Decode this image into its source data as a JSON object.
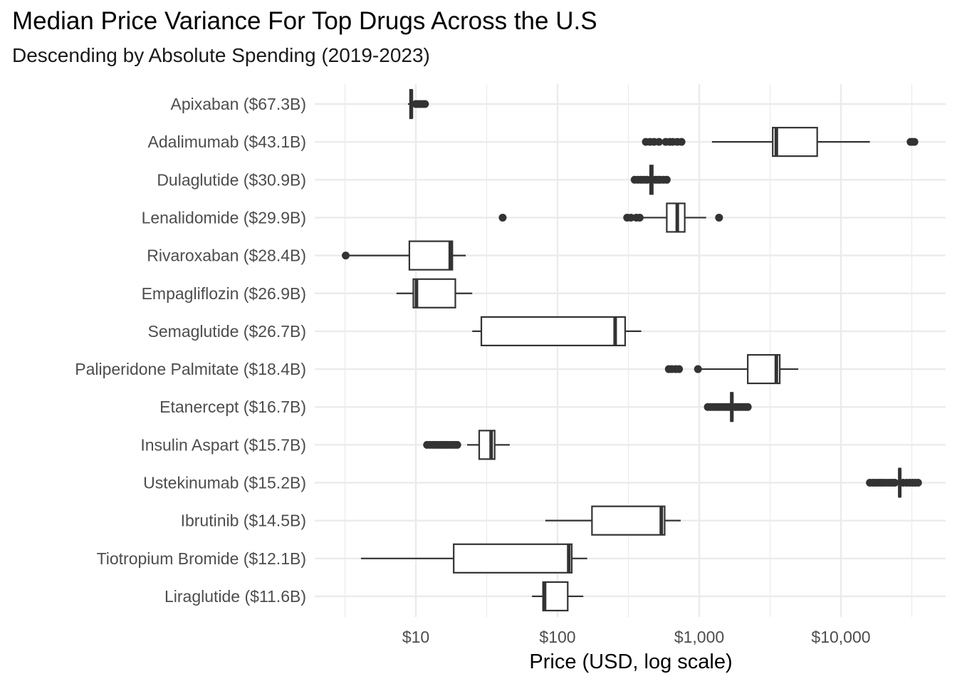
{
  "chart_data": {
    "type": "boxplot",
    "title": "Median Price Variance For Top Drugs Across the U.S",
    "subtitle": "Descending by Absolute Spending (2019-2023)",
    "xlabel": "Price (USD, log scale)",
    "ylabel": "",
    "x_scale": "log10",
    "xlim": [
      2.2,
      38000
    ],
    "x_ticks": [
      10,
      100,
      1000,
      10000
    ],
    "x_tick_labels": [
      "$10",
      "$100",
      "$1,000",
      "$10,000"
    ],
    "grid": true,
    "legend": "none",
    "box_color": "#333333",
    "grid_color": "#ebebeb",
    "series": [
      {
        "label": "Apixaban ($67.3B)",
        "whisker_low": 8.8,
        "q1": 9.1,
        "median": 9.3,
        "q3": 9.4,
        "whisker_high": 9.7,
        "outliers": [
          10.0,
          10.4,
          10.8,
          11.2,
          11.6
        ]
      },
      {
        "label": "Adalimumab ($43.1B)",
        "whisker_low": 1230,
        "q1": 3300,
        "median": 3500,
        "q3": 6800,
        "whisker_high": 16000,
        "outliers": [
          420,
          450,
          480,
          520,
          580,
          620,
          650,
          700,
          750,
          31000,
          32000,
          33000
        ]
      },
      {
        "label": "Dulaglutide ($30.9B)",
        "whisker_low": 440,
        "q1": 450,
        "median": 460,
        "q3": 470,
        "whisker_high": 480,
        "outliers": [
          350,
          370,
          390,
          410,
          430,
          490,
          510,
          530,
          560,
          590
        ]
      },
      {
        "label": "Lenalidomide ($29.9B)",
        "whisker_low": 400,
        "q1": 590,
        "median": 700,
        "q3": 790,
        "whisker_high": 1120,
        "outliers": [
          41,
          310,
          330,
          360,
          380,
          1380
        ]
      },
      {
        "label": "Rivaroxaban ($28.4B)",
        "whisker_low": 3.2,
        "q1": 9.0,
        "median": 17.5,
        "q3": 18.1,
        "whisker_high": 22.5,
        "outliers": [
          3.2
        ]
      },
      {
        "label": "Empagliflozin ($26.9B)",
        "whisker_low": 7.3,
        "q1": 9.6,
        "median": 10.1,
        "q3": 19.0,
        "whisker_high": 25.0,
        "outliers": []
      },
      {
        "label": "Semaglutide ($26.7B)",
        "whisker_low": 25.0,
        "q1": 29.0,
        "median": 255,
        "q3": 300,
        "whisker_high": 390,
        "outliers": []
      },
      {
        "label": "Paliperidone Palmitate ($18.4B)",
        "whisker_low": 1000,
        "q1": 2200,
        "median": 3500,
        "q3": 3700,
        "whisker_high": 5000,
        "outliers": [
          610,
          640,
          680,
          720,
          980
        ]
      },
      {
        "label": "Etanercept ($16.7B)",
        "whisker_low": 1650,
        "q1": 1670,
        "median": 1700,
        "q3": 1720,
        "whisker_high": 1750,
        "outliers": [
          1150,
          1200,
          1260,
          1320,
          1380,
          1440,
          1500,
          1560,
          1620,
          1800,
          1870,
          1950,
          2030,
          2120,
          2200
        ]
      },
      {
        "label": "Insulin Aspart ($15.7B)",
        "whisker_low": 23.0,
        "q1": 28.0,
        "median": 34.0,
        "q3": 36.0,
        "whisker_high": 46.0,
        "outliers": [
          12.0,
          12.6,
          13.2,
          13.8,
          14.4,
          15.0,
          15.6,
          16.2,
          16.8,
          17.5,
          18.2,
          18.9,
          19.6
        ]
      },
      {
        "label": "Ustekinumab ($15.2B)",
        "whisker_low": 25500,
        "q1": 25700,
        "median": 26000,
        "q3": 26300,
        "whisker_high": 26500,
        "outliers": [
          16000,
          16800,
          17600,
          18400,
          19200,
          20000,
          21000,
          22000,
          23000,
          24000,
          27500,
          29000,
          30500,
          32000,
          33500,
          35000
        ]
      },
      {
        "label": "Ibrutinib ($14.5B)",
        "whisker_low": 82,
        "q1": 175,
        "median": 540,
        "q3": 570,
        "whisker_high": 740,
        "outliers": []
      },
      {
        "label": "Tiotropium Bromide ($12.1B)",
        "whisker_low": 4.1,
        "q1": 18.5,
        "median": 120,
        "q3": 126,
        "whisker_high": 162,
        "outliers": []
      },
      {
        "label": "Liraglutide ($11.6B)",
        "whisker_low": 66,
        "q1": 79,
        "median": 81,
        "q3": 118,
        "whisker_high": 152,
        "outliers": []
      }
    ]
  }
}
